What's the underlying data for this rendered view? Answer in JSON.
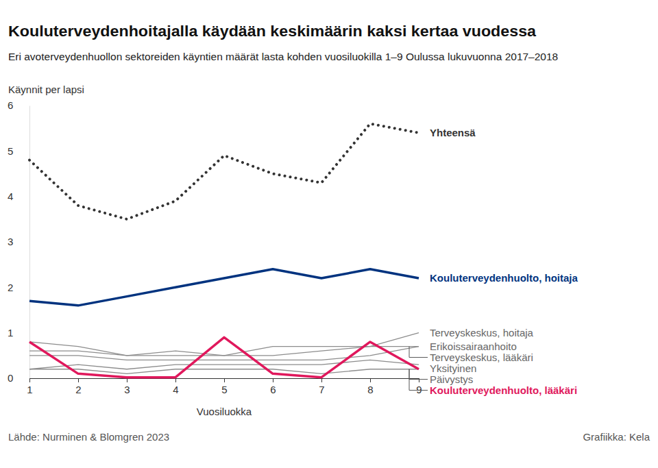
{
  "chart_data": {
    "type": "line",
    "title": "Kouluterveydenhoitajalla käydään keskimäärin kaksi kertaa vuodessa",
    "subtitle": "Eri avoterveydenhuollon sektoreiden käyntien määrät lasta kohden vuosiluokilla 1–9 Oulussa lukuvuonna 2017–2018",
    "ylabel": "Käynnit per lapsi",
    "xlabel": "Vuosiluokka",
    "source": "Lähde: Nurminen & Blomgren 2023",
    "credit": "Grafiikka: Kela",
    "x": [
      1,
      2,
      3,
      4,
      5,
      6,
      7,
      8,
      9
    ],
    "xlim": [
      1,
      9
    ],
    "xticks": [
      1,
      2,
      3,
      4,
      5,
      6,
      7,
      8,
      9
    ],
    "ylim": [
      0,
      6
    ],
    "yticks": [
      0,
      1,
      2,
      3,
      4,
      5,
      6
    ],
    "grid": false,
    "series": [
      {
        "name": "Terveyskeskus, hoitaja",
        "color": "#8c8c8c",
        "line_style": "solid",
        "values": [
          0.6,
          0.6,
          0.5,
          0.5,
          0.5,
          0.5,
          0.6,
          0.7,
          1.0
        ]
      },
      {
        "name": "Erikoissairaanhoito",
        "color": "#8c8c8c",
        "line_style": "solid",
        "values": [
          0.8,
          0.7,
          0.5,
          0.6,
          0.5,
          0.7,
          0.7,
          0.7,
          0.7
        ]
      },
      {
        "name": "Terveyskeskus, lääkäri",
        "color": "#8c8c8c",
        "line_style": "solid",
        "values": [
          0.5,
          0.5,
          0.4,
          0.4,
          0.4,
          0.4,
          0.4,
          0.5,
          0.7
        ]
      },
      {
        "name": "Yksityinen",
        "color": "#8c8c8c",
        "line_style": "solid",
        "values": [
          0.2,
          0.3,
          0.2,
          0.3,
          0.3,
          0.3,
          0.3,
          0.4,
          0.3
        ]
      },
      {
        "name": "Päivystys",
        "color": "#8c8c8c",
        "line_style": "solid",
        "values": [
          0.2,
          0.2,
          0.1,
          0.2,
          0.2,
          0.2,
          0.1,
          0.2,
          0.2
        ]
      },
      {
        "name": "Kouluterveydenhuolto, lääkäri",
        "color": "#e0185c",
        "line_style": "solid",
        "values": [
          0.8,
          0.1,
          0.02,
          0.02,
          0.9,
          0.1,
          0.02,
          0.8,
          0.2
        ]
      },
      {
        "name": "Kouluterveydenhuolto, hoitaja",
        "color": "#00337f",
        "line_style": "solid",
        "values": [
          1.7,
          1.6,
          1.8,
          2.0,
          2.2,
          2.4,
          2.2,
          2.4,
          2.2
        ]
      },
      {
        "name": "Yhteensä",
        "color": "#333333",
        "line_style": "dotted",
        "values": [
          4.8,
          3.8,
          3.5,
          3.9,
          4.9,
          4.5,
          4.3,
          5.6,
          5.4
        ]
      }
    ]
  }
}
